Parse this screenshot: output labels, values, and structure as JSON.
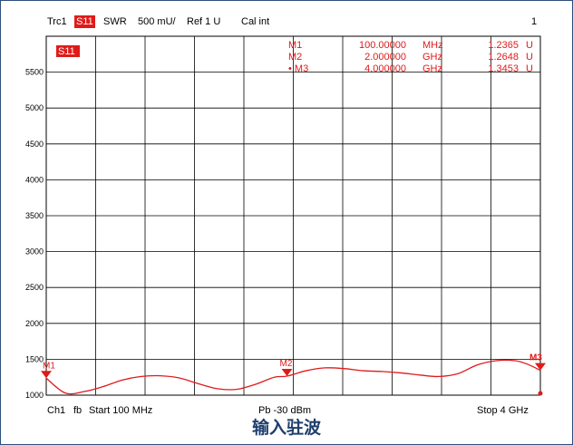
{
  "header": {
    "trace": "Trc1",
    "param": "S11",
    "format": "SWR",
    "scale": "500 mU/",
    "ref": "Ref 1 U",
    "cal": "Cal int",
    "channel_index": "1"
  },
  "footer": {
    "channel": "Ch1",
    "mode": "fb",
    "start": "Start  100 MHz",
    "power": "Pb  -30 dBm",
    "stop": "Stop  4 GHz"
  },
  "caption": "输入驻波",
  "colors": {
    "trace": "#e01a1a",
    "grid": "#000000",
    "frame": "#2c4f7c"
  },
  "chart_data": {
    "type": "line",
    "title": "",
    "xlabel": "",
    "ylabel": "",
    "xlim": [
      0.1,
      4.0
    ],
    "ylim": [
      1.0,
      6.0
    ],
    "y_ticks": [
      1.0,
      1.5,
      2.0,
      2.5,
      3.0,
      3.5,
      4.0,
      4.5,
      5.0,
      5.5
    ],
    "y_tick_labels": [
      "1000",
      "1500",
      "2000",
      "2500",
      "3000",
      "3500",
      "4000",
      "4500",
      "5000",
      "5500"
    ],
    "trace_label": "S11",
    "grid": true,
    "series": [
      {
        "x": [
          0.1,
          0.25,
          0.4,
          0.55,
          0.7,
          0.85,
          1.0,
          1.15,
          1.3,
          1.45,
          1.6,
          1.75,
          1.9,
          2.0,
          2.15,
          2.3,
          2.45,
          2.6,
          2.75,
          2.9,
          3.05,
          3.2,
          3.35,
          3.5,
          3.65,
          3.8,
          3.9,
          4.0
        ],
        "y": [
          1.2365,
          1.03,
          1.05,
          1.12,
          1.21,
          1.26,
          1.27,
          1.24,
          1.16,
          1.09,
          1.08,
          1.15,
          1.25,
          1.2648,
          1.34,
          1.38,
          1.37,
          1.34,
          1.33,
          1.31,
          1.28,
          1.26,
          1.3,
          1.42,
          1.48,
          1.48,
          1.43,
          1.3453
        ]
      }
    ],
    "markers": [
      {
        "name": "M1",
        "label": "M1",
        "freq": "100.00000",
        "unit": "MHz",
        "value": "1.2365",
        "vunit": "U",
        "x": 0.1,
        "y": 1.2365
      },
      {
        "name": "M2",
        "label": "M2",
        "freq": "2.000000",
        "unit": "GHz",
        "value": "1.2648",
        "vunit": "U",
        "x": 2.0,
        "y": 1.2648
      },
      {
        "name": "M3",
        "label": "• M3",
        "freq": "4.000000",
        "unit": "GHz",
        "value": "1.3453",
        "vunit": "U",
        "x": 4.0,
        "y": 1.3453
      }
    ],
    "marker_flags": [
      "M1",
      "M2",
      "M3"
    ]
  }
}
